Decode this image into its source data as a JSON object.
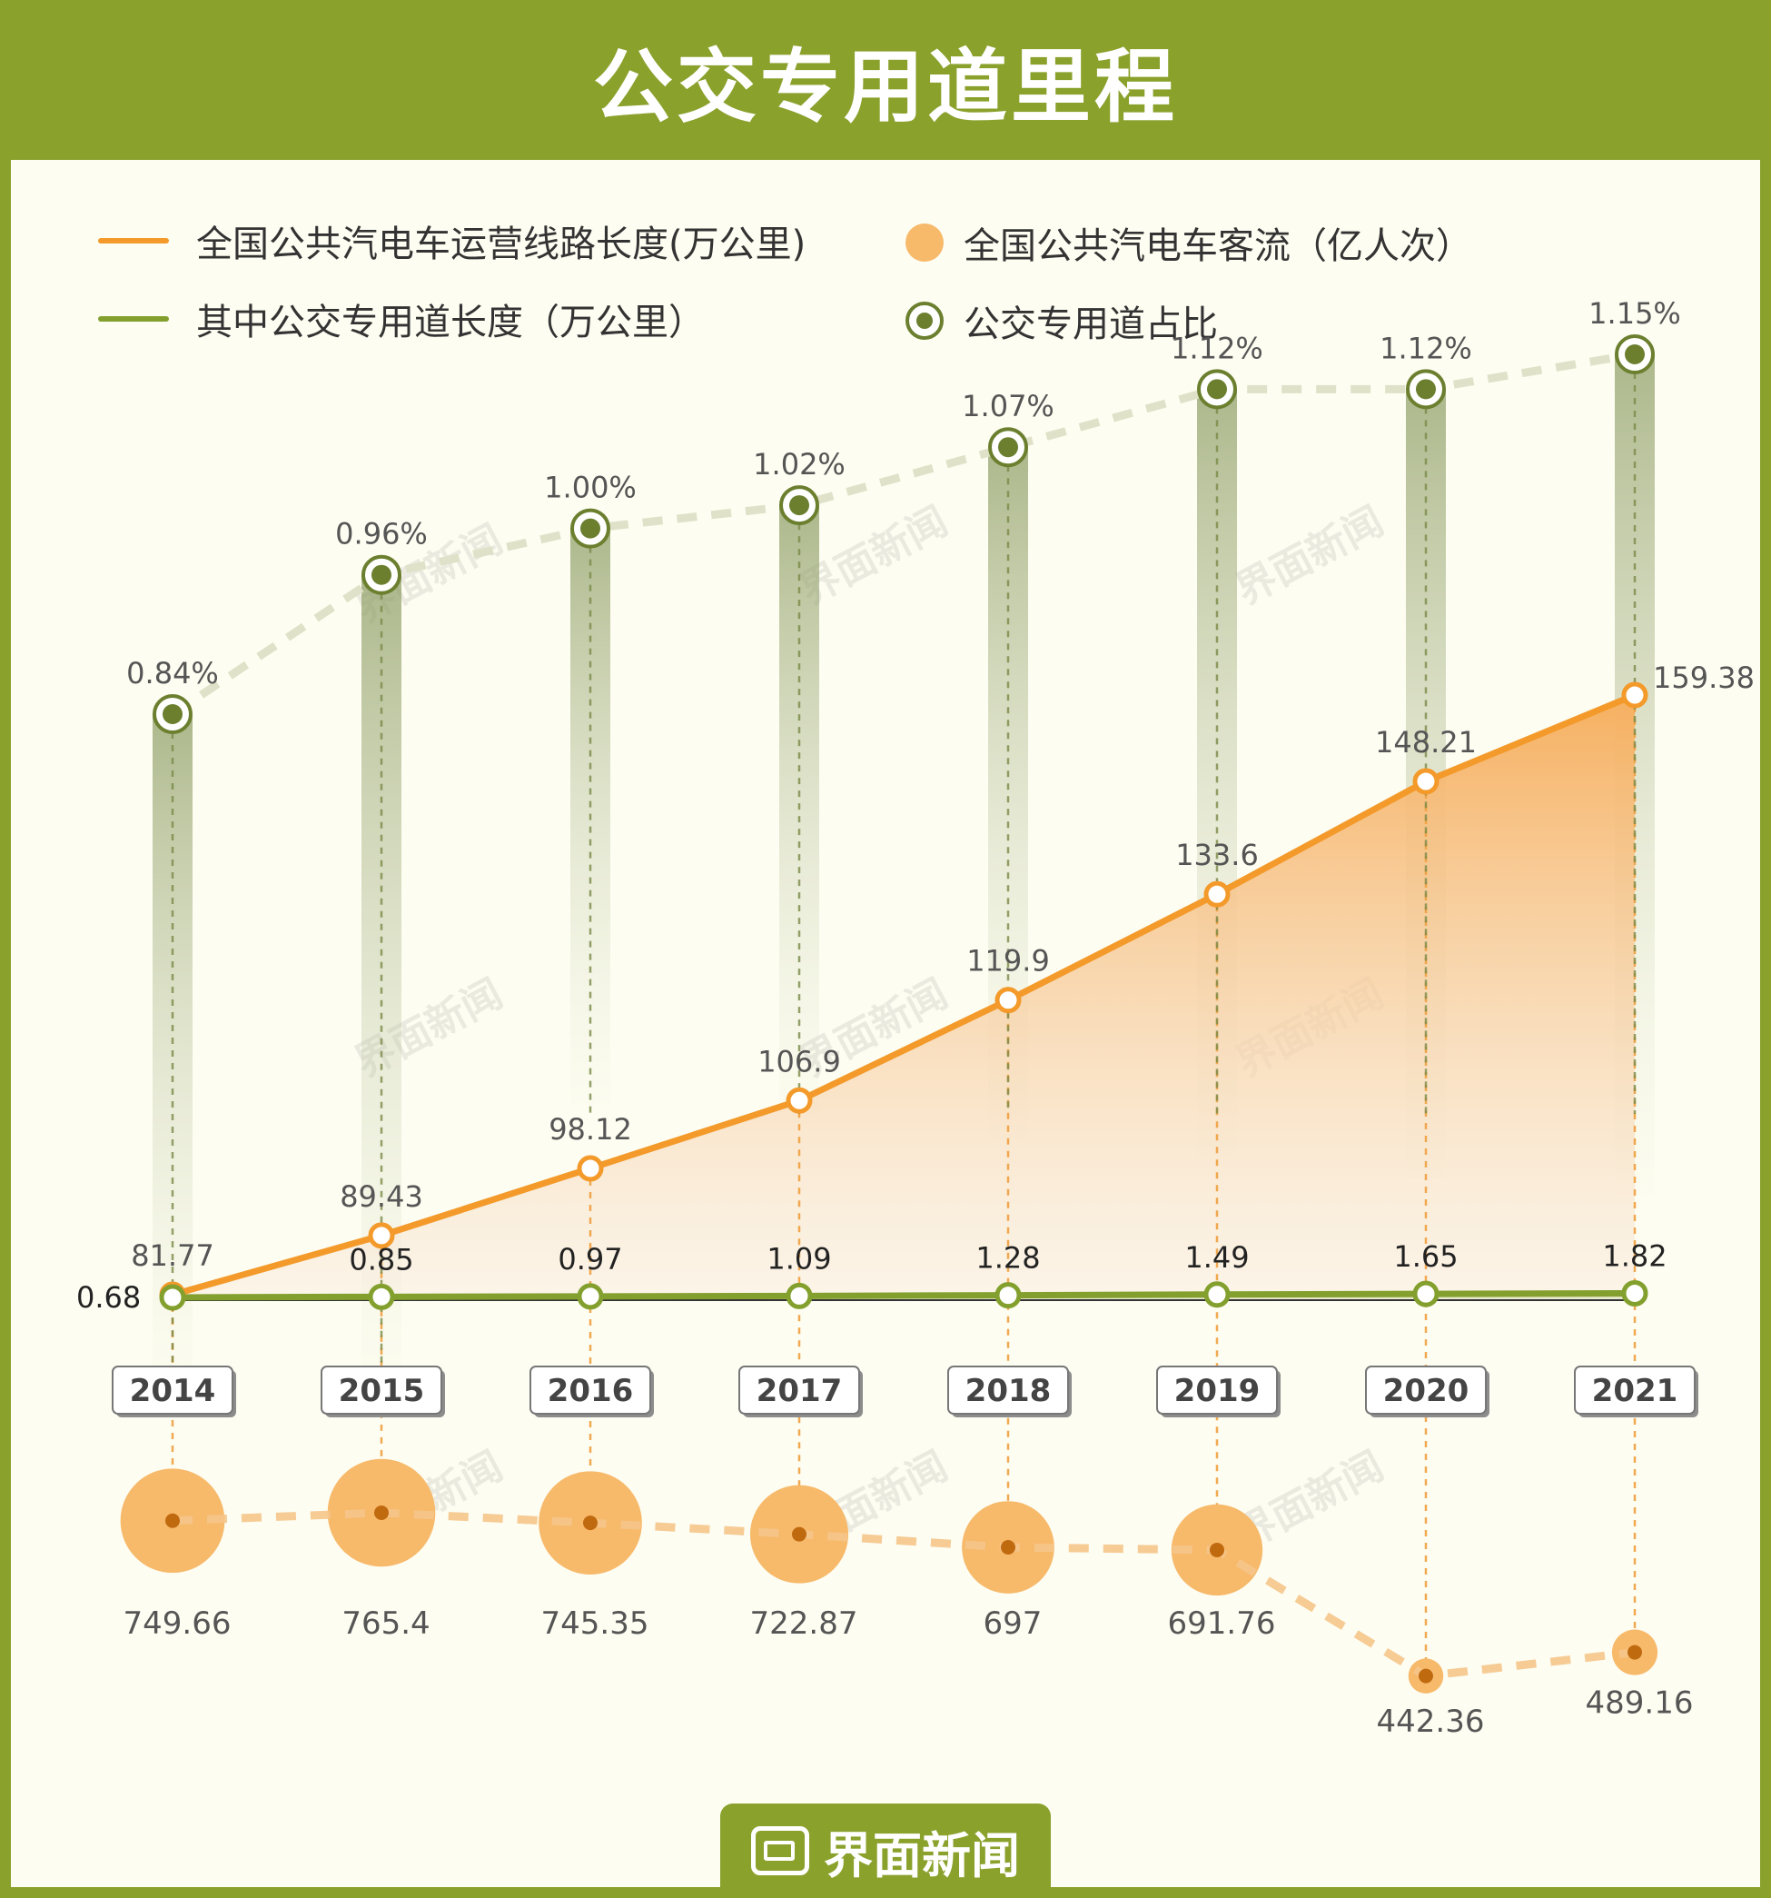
{
  "title": "公交专用道里程",
  "brand": "界面新闻",
  "watermark_text": "界面新闻",
  "legend": {
    "route_length": "全国公共汽电车运营线路长度(万公里)",
    "bus_lane_length": "其中公交专用道长度（万公里）",
    "ridership": "全国公共汽电车客流（亿人次）",
    "bus_lane_share": "公交专用道占比"
  },
  "colors": {
    "route": "#f39a2b",
    "lane": "#83a02e",
    "share": "#6b7f2f",
    "ridership": "#f7b96a",
    "ridership_dot": "#c06a10"
  },
  "chart_data": {
    "type": "line",
    "title": "公交专用道里程",
    "categories": [
      "2014",
      "2015",
      "2016",
      "2017",
      "2018",
      "2019",
      "2020",
      "2021"
    ],
    "series": [
      {
        "name": "全国公共汽电车运营线路长度(万公里)",
        "type": "area",
        "values": [
          81.77,
          89.43,
          98.12,
          106.9,
          119.9,
          133.6,
          148.21,
          159.38
        ],
        "labels": [
          "81.77",
          "89.43",
          "98.12",
          "106.9",
          "119.9",
          "133.6",
          "148.21",
          "159.38"
        ]
      },
      {
        "name": "其中公交专用道长度（万公里）",
        "type": "line",
        "values": [
          0.68,
          0.85,
          0.97,
          1.09,
          1.28,
          1.49,
          1.65,
          1.82
        ],
        "labels": [
          "0.68",
          "0.85",
          "0.97",
          "1.09",
          "1.28",
          "1.49",
          "1.65",
          "1.82"
        ]
      },
      {
        "name": "公交专用道占比",
        "type": "line",
        "unit": "%",
        "values": [
          0.84,
          0.96,
          1.0,
          1.02,
          1.07,
          1.12,
          1.12,
          1.15
        ],
        "labels": [
          "0.84%",
          "0.96%",
          "1.00%",
          "1.02%",
          "1.07%",
          "1.12%",
          "1.12%",
          "1.15%"
        ]
      },
      {
        "name": "全国公共汽电车客流（亿人次）",
        "type": "bubble",
        "values": [
          749.66,
          765.4,
          745.35,
          722.87,
          697,
          691.76,
          442.36,
          489.16
        ],
        "labels": [
          "749.66",
          "765.4",
          "745.35",
          "722.87",
          "697",
          "691.76",
          "442.36",
          "489.16"
        ]
      }
    ],
    "ylim_length": [
      0,
      170
    ],
    "xlabel": "",
    "ylabel": ""
  }
}
